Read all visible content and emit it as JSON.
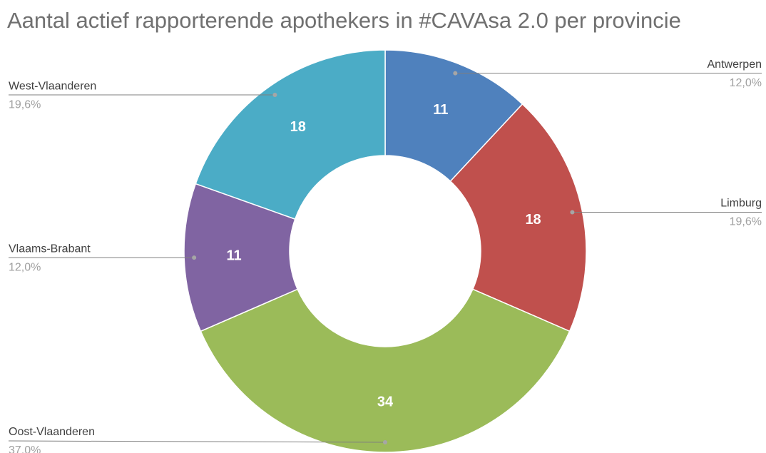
{
  "chart_data": {
    "type": "donut",
    "title": "Aantal actief rapporterende apothekers in #CAVAsa 2.0 per provincie",
    "categories": [
      "Antwerpen",
      "Limburg",
      "Oost-Vlaanderen",
      "Vlaams-Brabant",
      "West-Vlaanderen"
    ],
    "values": [
      11,
      18,
      34,
      11,
      18
    ],
    "percent_labels": [
      "12,0%",
      "19,6%",
      "37,0%",
      "12,0%",
      "19,6%"
    ],
    "colors": [
      "#4f81bd",
      "#c0504d",
      "#9bbb59",
      "#8064a2",
      "#4bacc6"
    ]
  }
}
